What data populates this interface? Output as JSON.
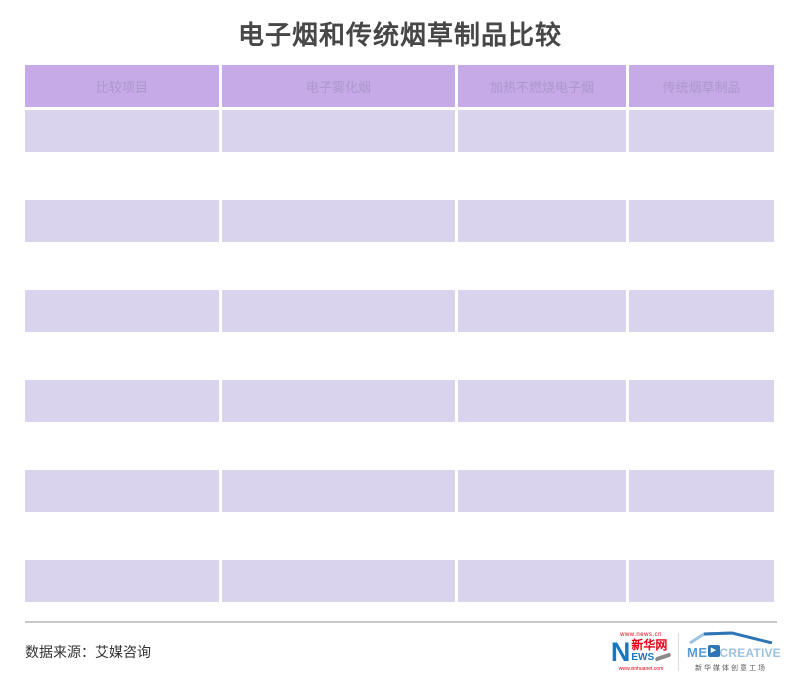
{
  "title": "电子烟和传统烟草制品比较",
  "table": {
    "headers": [
      "比较项目",
      "电子雾化烟",
      "加热不燃烧电子烟",
      "传统烟草制品"
    ],
    "rows": [
      [
        "",
        "",
        "",
        ""
      ],
      [
        "",
        "",
        "",
        ""
      ],
      [
        "",
        "",
        "",
        ""
      ],
      [
        "",
        "",
        "",
        ""
      ],
      [
        "",
        "",
        "",
        ""
      ],
      [
        "",
        "",
        "",
        ""
      ]
    ]
  },
  "chart_data": {
    "type": "table",
    "title": "电子烟和传统烟草制品比较",
    "columns": [
      "比较项目",
      "电子雾化烟",
      "加热不燃烧电子烟",
      "传统烟草制品"
    ],
    "rows": [
      [
        "",
        "",
        "",
        ""
      ],
      [
        "",
        "",
        "",
        ""
      ],
      [
        "",
        "",
        "",
        ""
      ],
      [
        "",
        "",
        "",
        ""
      ],
      [
        "",
        "",
        "",
        ""
      ],
      [
        "",
        "",
        "",
        ""
      ]
    ],
    "source": "数据来源：艾媒咨询",
    "layout": {
      "header_filled": true,
      "body_cells_empty": true,
      "striped": true
    }
  },
  "footer": {
    "source": "数据来源：艾媒咨询"
  },
  "logos": {
    "xinhuanet": {
      "url_top": "www.news.cn",
      "letter": "N",
      "name": "新华网",
      "news_suffix": "EWS",
      "url_bottom": "www.xinhuanet.com"
    },
    "medcreative": {
      "me": "ME",
      "play": "▶",
      "creative": "CREATIVE",
      "subtitle": "新华媒体创意工场"
    }
  },
  "colors": {
    "header_bg": "#c6a9e7",
    "header_text": "#ab98cc",
    "row_bg": "#d9d3ee",
    "title_text": "#474747",
    "divider": "#c8c8c8",
    "xinhua_red": "#e60012",
    "xinhua_blue": "#1878be",
    "med_blue_dark": "#2e75b6",
    "med_blue_mid": "#5b9bd5",
    "med_blue_light": "#9cc2e5"
  }
}
